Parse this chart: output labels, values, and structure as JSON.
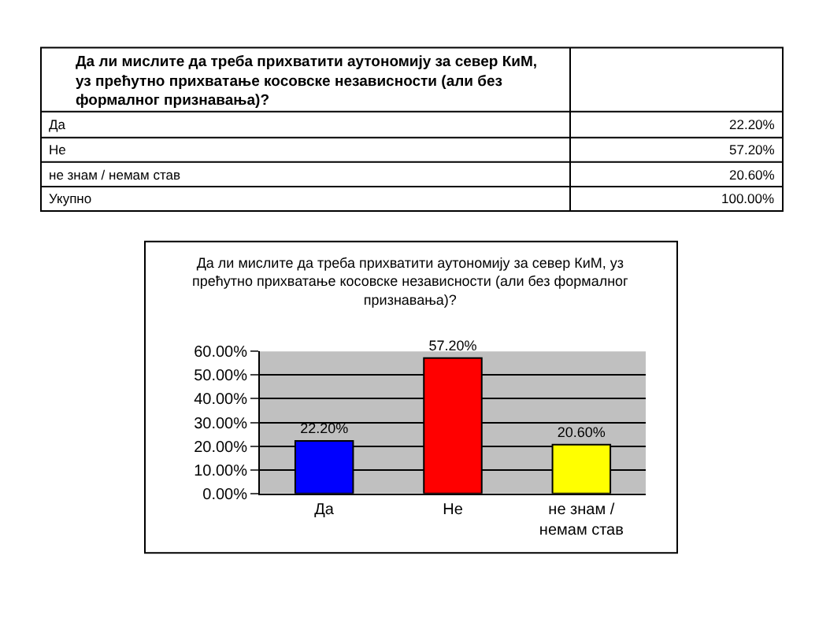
{
  "chart_data": {
    "type": "bar",
    "title": "Да ли мислите да треба прихватити аутономију за север КиМ, уз прећутно прихватање косовске независности (али без формалног признавања)?",
    "categories": [
      "Да",
      "Не",
      "не знам / немам став"
    ],
    "values": [
      22.2,
      57.2,
      20.6
    ],
    "colors": [
      "#0000ff",
      "#ff0000",
      "#ffff00"
    ],
    "value_labels": [
      "22.20%",
      "57.20%",
      "20.60%"
    ],
    "ylim": [
      0,
      60
    ],
    "yticks": [
      {
        "value": 0,
        "label": "0.00%"
      },
      {
        "value": 10,
        "label": "10.00%"
      },
      {
        "value": 20,
        "label": "20.00%"
      },
      {
        "value": 30,
        "label": "30.00%"
      },
      {
        "value": 40,
        "label": "40.00%"
      },
      {
        "value": 50,
        "label": "50.00%"
      },
      {
        "value": 60,
        "label": "60.00%"
      }
    ],
    "grid": "y",
    "annotations": [
      "Да ли мислите да треба прихватити аутономију за север КиМ, уз прећутно прихватање косовске независности (али без формалног признавања)?",
      "Да",
      "22.20%",
      "Не",
      "57.20%",
      "не знам / немам став",
      "20.60%",
      "Укупно",
      "100.00%"
    ]
  }
}
